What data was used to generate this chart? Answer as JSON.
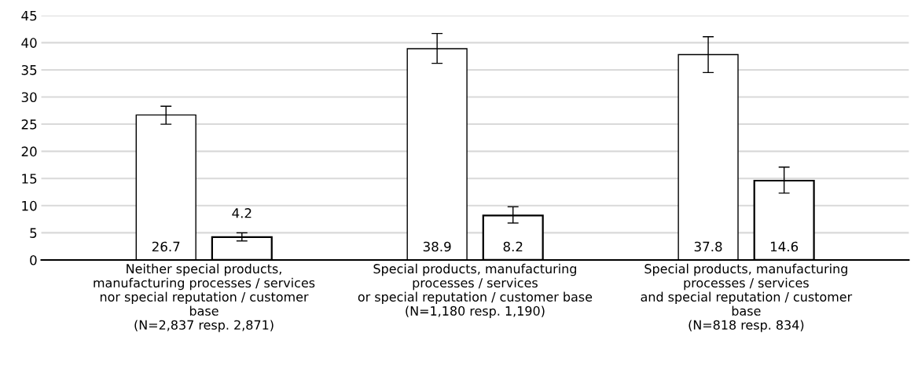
{
  "chart_data": {
    "type": "bar",
    "categories": [
      "Neither special products,\nmanufacturing processes / services\nnor special reputation / customer\nbase\n(N=2,837 resp. 2,871)",
      "Special products, manufacturing\nprocesses / services\nor special reputation / customer base\n(N=1,180 resp. 1,190)",
      "Special products, manufacturing\nprocesses / services\nand special reputation / customer\nbase\n(N=818 resp. 834)"
    ],
    "series": [
      {
        "color": "#ffffff",
        "values": [
          26.7,
          38.9,
          37.8
        ],
        "errors": [
          [
            25.0,
            28.3
          ],
          [
            36.2,
            41.7
          ],
          [
            34.5,
            41.1
          ]
        ]
      },
      {
        "color": "#ffffff",
        "values": [
          4.2,
          8.2,
          14.6
        ],
        "errors": [
          [
            3.5,
            5.0
          ],
          [
            6.8,
            9.8
          ],
          [
            12.3,
            17.1
          ]
        ]
      }
    ],
    "ylim": [
      0,
      45
    ],
    "yticks": [
      0,
      5,
      10,
      15,
      20,
      25,
      30,
      35,
      40,
      45
    ],
    "grid": "y",
    "data_labels": true
  }
}
